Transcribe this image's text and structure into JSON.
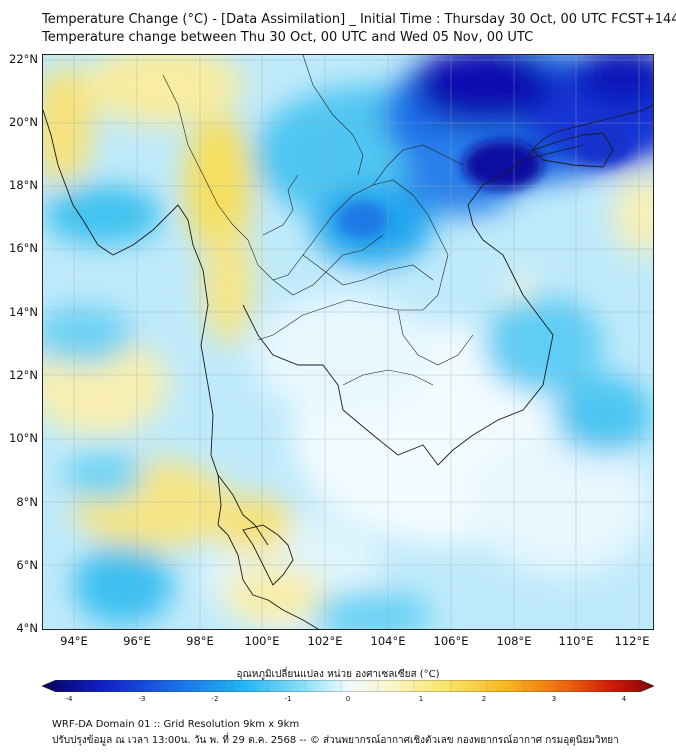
{
  "title": {
    "line1": "Temperature Change (°C) - [Data Assimilation] _ Initial Time : Thursday 30 Oct, 00 UTC FCST+144",
    "line2": "Temperature change between Thu 30 Oct, 00 UTC and Wed 05 Nov, 00 UTC"
  },
  "map": {
    "lat_labels": [
      "22°N",
      "20°N",
      "18°N",
      "16°N",
      "14°N",
      "12°N",
      "10°N",
      "8°N",
      "6°N",
      "4°N"
    ],
    "lon_labels": [
      "94°E",
      "96°E",
      "98°E",
      "100°E",
      "102°E",
      "104°E",
      "106°E",
      "108°E",
      "110°E",
      "112°E"
    ],
    "lat_range": [
      4,
      22.3
    ],
    "lon_range": [
      93,
      112.5
    ],
    "gridlines": true
  },
  "colorbar": {
    "title": "อุณหภูมิเปลี่ยนแปลง หน่วย องศาเซลเซียส (°C)",
    "ticks": [
      "-4",
      "-3",
      "-2",
      "-1",
      "0",
      "1",
      "2",
      "3",
      "4"
    ],
    "range": [
      -4,
      4
    ],
    "colors": [
      "#08005c",
      "#1020c8",
      "#1c6ee8",
      "#22b6f2",
      "#8ee0fa",
      "#f0fbff",
      "#f8f6c8",
      "#fbe46c",
      "#f6b71d",
      "#ee6c10",
      "#d21a06",
      "#7e0606"
    ]
  },
  "footer": {
    "line1": "WRF-DA Domain 01 :: Grid Resolution 9km x 9km",
    "line2": "ปรับปรุงข้อมูล ณ เวลา 13:00น. วัน พ. ที่ 29 ต.ค. 2568 -- © ส่วนพยากรณ์อากาศเชิงตัวเลข กองพยากรณ์อากาศ กรมอุตุนิยมวิทยา"
  }
}
